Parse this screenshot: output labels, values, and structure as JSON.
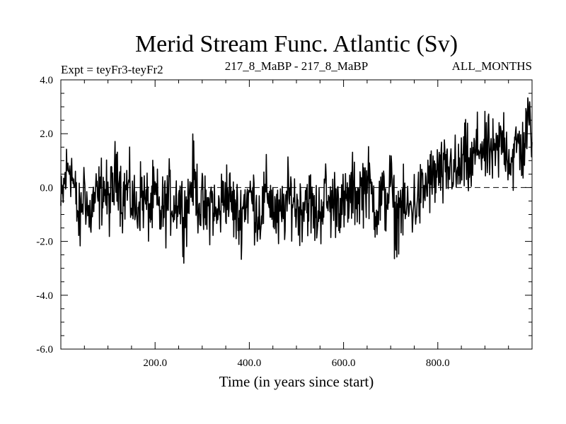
{
  "chart_data": {
    "type": "line",
    "title": "Merid Stream Func. Atlantic (Sv)",
    "subtitle_left": "Expt = teyFr3-teyFr2",
    "subtitle_center": "217_8_MaBP - 217_8_MaBP",
    "subtitle_right": "ALL_MONTHS",
    "xlabel": "Time (in years since start)",
    "ylabel": "",
    "xlim": [
      0,
      1000
    ],
    "ylim": [
      -6.0,
      4.0
    ],
    "x_ticks": [
      200,
      400,
      600,
      800
    ],
    "x_tick_labels": [
      "200.0",
      "400.0",
      "600.0",
      "800.0"
    ],
    "y_ticks": [
      4.0,
      2.0,
      0.0,
      -2.0,
      -4.0,
      -6.0
    ],
    "y_tick_labels": [
      "4.0",
      "2.0",
      "0.0",
      "-2.0",
      "-4.0",
      "-6.0"
    ],
    "zero_line": 0.0,
    "series": [
      {
        "name": "teyFr3-teyFr2",
        "x_start": 0,
        "x_step": 10,
        "values": [
          -0.8,
          0.4,
          1.0,
          -0.3,
          -1.4,
          0.2,
          -1.2,
          -0.5,
          -0.4,
          0.1,
          -0.6,
          -0.2,
          0.9,
          -0.5,
          0.0,
          -0.4,
          -0.9,
          -0.2,
          -0.6,
          -0.8,
          -0.3,
          -1.0,
          -0.8,
          -0.4,
          -0.6,
          -0.3,
          -1.0,
          -0.6,
          0.5,
          -0.3,
          -0.8,
          -1.0,
          -0.4,
          -1.2,
          -0.6,
          -0.1,
          -0.5,
          -0.9,
          -1.2,
          -0.5,
          -0.3,
          -0.5,
          -1.1,
          -0.6,
          -0.1,
          -0.7,
          -1.3,
          -1.0,
          -0.5,
          -0.3,
          -0.7,
          -0.8,
          -0.3,
          -0.6,
          -1.1,
          -0.9,
          -0.2,
          -0.7,
          -0.5,
          -0.4,
          -0.8,
          -0.5,
          -0.1,
          -0.3,
          0.0,
          0.3,
          -0.3,
          -0.8,
          -0.4,
          -0.5,
          0.3,
          -1.4,
          -0.6,
          -0.9,
          -0.8,
          -0.6,
          -0.4,
          -0.2,
          0.3,
          0.2,
          0.6,
          0.4,
          0.5,
          0.9,
          0.4,
          0.8,
          1.1,
          0.6,
          1.3,
          1.6,
          1.2,
          1.4,
          1.0,
          1.5,
          1.9,
          1.2,
          1.0,
          1.7,
          1.3,
          2.3
        ]
      }
    ]
  }
}
